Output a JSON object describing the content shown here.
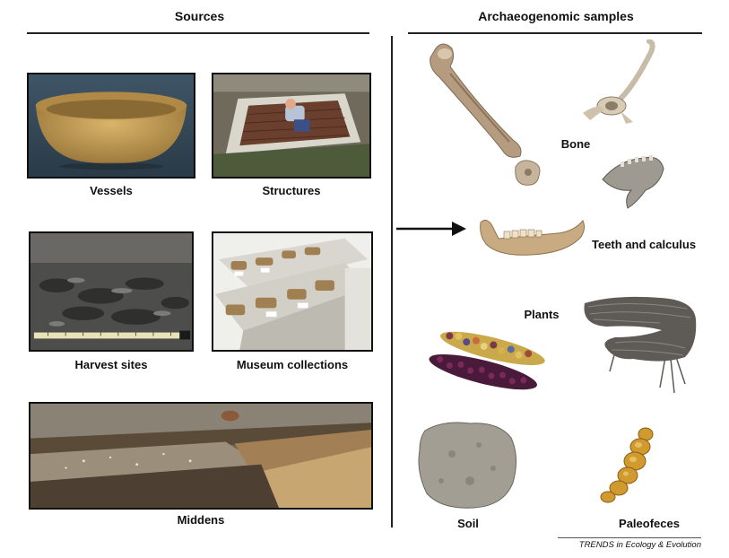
{
  "sources": {
    "heading": "Sources",
    "items": [
      {
        "label": "Vessels"
      },
      {
        "label": "Structures"
      },
      {
        "label": "Harvest sites"
      },
      {
        "label": "Museum collections"
      },
      {
        "label": "Middens"
      }
    ]
  },
  "samples": {
    "heading": "Archaeogenomic samples",
    "items": [
      {
        "label": "Bone"
      },
      {
        "label": "Teeth and calculus"
      },
      {
        "label": "Plants"
      },
      {
        "label": "Soil"
      },
      {
        "label": "Paleofeces"
      }
    ]
  },
  "credit": "TRENDS in Ecology & Evolution"
}
